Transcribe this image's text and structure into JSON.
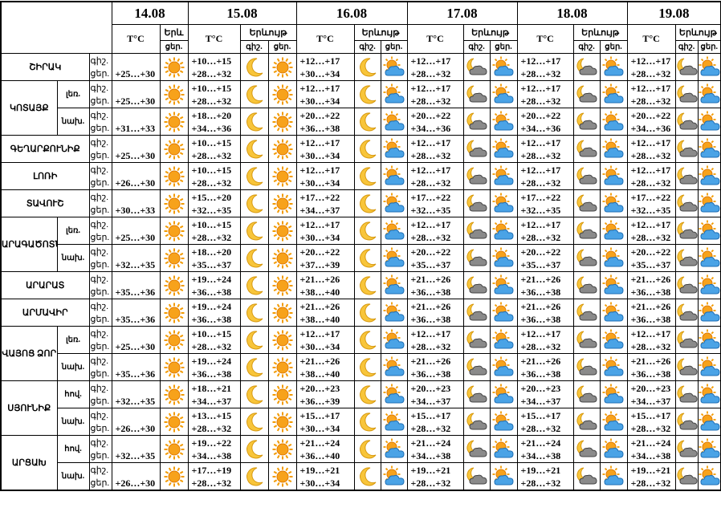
{
  "header": {
    "dates": [
      "14.08",
      "15.08",
      "16.08",
      "17.08",
      "18.08",
      "19.08"
    ],
    "temp_label": "T°C",
    "first_phenomenon_label": "Երև",
    "phenomenon_label": "Երևույթ",
    "night": "գիշ.",
    "day": "ցեր."
  },
  "regions": [
    {
      "name": "ՇԻՐԱԿ",
      "rows": [
        {
          "day_first": "+25…+30",
          "forecast": [
            {
              "night": "+10…+15",
              "day": "+28…+32"
            },
            {
              "night": "+12…+17",
              "day": "+30…+34"
            },
            {
              "night": "+12…+17",
              "day": "+28…+32"
            },
            {
              "night": "+12…+17",
              "day": "+28…+32"
            },
            {
              "night": "+12…+17",
              "day": "+28…+32"
            }
          ]
        }
      ]
    },
    {
      "name": "ԿՈՏԱՅՔ",
      "rows": [
        {
          "sub": "լեռ.",
          "day_first": "+25…+30",
          "forecast": [
            {
              "night": "+10…+15",
              "day": "+28…+32"
            },
            {
              "night": "+12…+17",
              "day": "+30…+34"
            },
            {
              "night": "+12…+17",
              "day": "+28…+32"
            },
            {
              "night": "+12…+17",
              "day": "+28…+32"
            },
            {
              "night": "+12…+17",
              "day": "+28…+32"
            }
          ]
        },
        {
          "sub": "նախ.",
          "day_first": "+31…+33",
          "forecast": [
            {
              "night": "+18…+20",
              "day": "+34…+36"
            },
            {
              "night": "+20…+22",
              "day": "+36…+38"
            },
            {
              "night": "+20…+22",
              "day": "+34…+36"
            },
            {
              "night": "+20…+22",
              "day": "+34…+36"
            },
            {
              "night": "+20…+22",
              "day": "+34…+36"
            }
          ]
        }
      ]
    },
    {
      "name": "ԳԵՂԱՐՔՈՒՆԻՔ",
      "rows": [
        {
          "day_first": "+25…+30",
          "forecast": [
            {
              "night": "+10…+15",
              "day": "+28…+32"
            },
            {
              "night": "+12…+17",
              "day": "+30…+34"
            },
            {
              "night": "+12…+17",
              "day": "+28…+32"
            },
            {
              "night": "+12…+17",
              "day": "+28…+32"
            },
            {
              "night": "+12…+17",
              "day": "+28…+32"
            }
          ]
        }
      ]
    },
    {
      "name": "ԼՈՌԻ",
      "rows": [
        {
          "day_first": "+26…+30",
          "forecast": [
            {
              "night": "+10…+15",
              "day": "+28…+32"
            },
            {
              "night": "+12…+17",
              "day": "+30…+34"
            },
            {
              "night": "+12…+17",
              "day": "+28…+32"
            },
            {
              "night": "+12…+17",
              "day": "+28…+32"
            },
            {
              "night": "+12…+17",
              "day": "+28…+32"
            }
          ]
        }
      ]
    },
    {
      "name": "ՏԱՎՈՒՇ",
      "rows": [
        {
          "day_first": "+30…+33",
          "forecast": [
            {
              "night": "+15…+20",
              "day": "+32…+35"
            },
            {
              "night": "+17…+22",
              "day": "+34…+37"
            },
            {
              "night": "+17…+22",
              "day": "+32…+35"
            },
            {
              "night": "+17…+22",
              "day": "+32…+35"
            },
            {
              "night": "+17…+22",
              "day": "+32…+35"
            }
          ]
        }
      ]
    },
    {
      "name": "ԱՐԱԳԱԾՈՏՆ",
      "rows": [
        {
          "sub": "լեռ.",
          "day_first": "+25…+30",
          "forecast": [
            {
              "night": "+10…+15",
              "day": "+28…+32"
            },
            {
              "night": "+12…+17",
              "day": "+30…+34"
            },
            {
              "night": "+12…+17",
              "day": "+28…+32"
            },
            {
              "night": "+12…+17",
              "day": "+28…+32"
            },
            {
              "night": "+12…+17",
              "day": "+28…+32"
            }
          ]
        },
        {
          "sub": "նախ.",
          "day_first": "+32…+35",
          "forecast": [
            {
              "night": "+18…+20",
              "day": "+35…+37"
            },
            {
              "night": "+20…+22",
              "day": "+37…+39"
            },
            {
              "night": "+20…+22",
              "day": "+35…+37"
            },
            {
              "night": "+20…+22",
              "day": "+35…+37"
            },
            {
              "night": "+20…+22",
              "day": "+35…+37"
            }
          ]
        }
      ]
    },
    {
      "name": "ԱՐԱՐԱՏ",
      "rows": [
        {
          "day_first": "+35…+36",
          "forecast": [
            {
              "night": "+19…+24",
              "day": "+36…+38"
            },
            {
              "night": "+21…+26",
              "day": "+38…+40"
            },
            {
              "night": "+21…+26",
              "day": "+36…+38"
            },
            {
              "night": "+21…+26",
              "day": "+36…+38"
            },
            {
              "night": "+21…+26",
              "day": "+36…+38"
            }
          ]
        }
      ]
    },
    {
      "name": "ԱՐՄԱՎԻՐ",
      "rows": [
        {
          "day_first": "+35…+36",
          "forecast": [
            {
              "night": "+19…+24",
              "day": "+36…+38"
            },
            {
              "night": "+21…+26",
              "day": "+38…+40"
            },
            {
              "night": "+21…+26",
              "day": "+36…+38"
            },
            {
              "night": "+21…+26",
              "day": "+36…+38"
            },
            {
              "night": "+21…+26",
              "day": "+36…+38"
            }
          ]
        }
      ]
    },
    {
      "name": "ՎԱՅՈՑ ՁՈՐ",
      "rows": [
        {
          "sub": "լեռ.",
          "day_first": "+25…+30",
          "forecast": [
            {
              "night": "+10…+15",
              "day": "+28…+32"
            },
            {
              "night": "+12…+17",
              "day": "+30…+34"
            },
            {
              "night": "+12…+17",
              "day": "+28…+32"
            },
            {
              "night": "+12…+17",
              "day": "+28…+32"
            },
            {
              "night": "+12…+17",
              "day": "+28…+32"
            }
          ]
        },
        {
          "sub": "նախ.",
          "day_first": "+35…+36",
          "forecast": [
            {
              "night": "+19…+24",
              "day": "+36…+38"
            },
            {
              "night": "+21…+26",
              "day": "+38…+40"
            },
            {
              "night": "+21…+26",
              "day": "+36…+38"
            },
            {
              "night": "+21…+26",
              "day": "+36…+38"
            },
            {
              "night": "+21…+26",
              "day": "+36…+38"
            }
          ]
        }
      ]
    },
    {
      "name": "ՍՅՈՒՆԻՔ",
      "rows": [
        {
          "sub": "հով.",
          "day_first": "+32…+35",
          "forecast": [
            {
              "night": "+18…+21",
              "day": "+34…+37"
            },
            {
              "night": "+20…+23",
              "day": "+36…+39"
            },
            {
              "night": "+20…+23",
              "day": "+34…+37"
            },
            {
              "night": "+20…+23",
              "day": "+34…+37"
            },
            {
              "night": "+20…+23",
              "day": "+34…+37"
            }
          ]
        },
        {
          "sub": "նախ.",
          "day_first": "+26…+30",
          "forecast": [
            {
              "night": "+13…+15",
              "day": "+28…+32"
            },
            {
              "night": "+15…+17",
              "day": "+30…+34"
            },
            {
              "night": "+15…+17",
              "day": "+28…+32"
            },
            {
              "night": "+15…+17",
              "day": "+28…+32"
            },
            {
              "night": "+15…+17",
              "day": "+28…+32"
            }
          ]
        }
      ]
    },
    {
      "name": "ԱՐՑԱԽ",
      "rows": [
        {
          "sub": "հով.",
          "day_first": "+32…+35",
          "forecast": [
            {
              "night": "+19…+22",
              "day": "+34…+38"
            },
            {
              "night": "+21…+24",
              "day": "+36…+40"
            },
            {
              "night": "+21…+24",
              "day": "+34…+38"
            },
            {
              "night": "+21…+24",
              "day": "+34…+38"
            },
            {
              "night": "+21…+24",
              "day": "+34…+38"
            }
          ]
        },
        {
          "sub": "նախ.",
          "day_first": "+26…+30",
          "forecast": [
            {
              "night": "+17…+19",
              "day": "+28…+32"
            },
            {
              "night": "+19…+21",
              "day": "+30…+34"
            },
            {
              "night": "+19…+21",
              "day": "+28…+32"
            },
            {
              "night": "+19…+21",
              "day": "+28…+32"
            },
            {
              "night": "+19…+21",
              "day": "+28…+32"
            }
          ]
        }
      ]
    }
  ]
}
